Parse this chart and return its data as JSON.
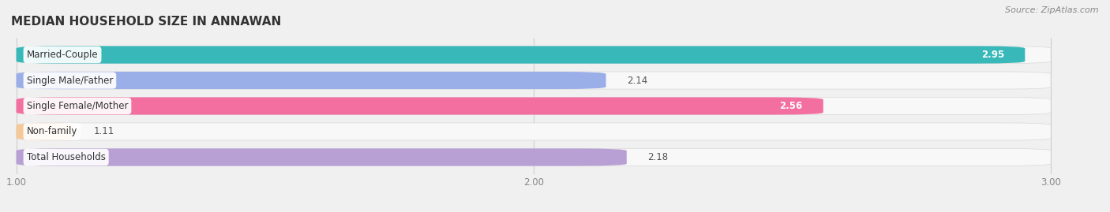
{
  "title": "MEDIAN HOUSEHOLD SIZE IN ANNAWAN",
  "source": "Source: ZipAtlas.com",
  "categories": [
    "Married-Couple",
    "Single Male/Father",
    "Single Female/Mother",
    "Non-family",
    "Total Households"
  ],
  "values": [
    2.95,
    2.14,
    2.56,
    1.11,
    2.18
  ],
  "bar_colors": [
    "#38b8b8",
    "#9aaee8",
    "#f26fa0",
    "#f5c89a",
    "#b89fd4"
  ],
  "value_inside": [
    true,
    false,
    true,
    false,
    false
  ],
  "xmin": 1.0,
  "xmax": 3.0,
  "xticks": [
    1.0,
    2.0,
    3.0
  ],
  "background_color": "#f0f0f0",
  "bar_bg_color": "#f8f8f8",
  "row_bg_color": "#ebebeb",
  "title_fontsize": 11,
  "label_fontsize": 8.5,
  "value_fontsize": 8.5,
  "source_fontsize": 8
}
